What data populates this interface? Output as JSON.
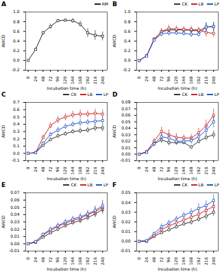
{
  "chart_data": [
    {
      "type": "line",
      "title": "A",
      "xlabel": "Incubation time (h)",
      "ylabel": "AWCD",
      "x": [
        0,
        24,
        48,
        72,
        96,
        120,
        144,
        168,
        192,
        216,
        240
      ],
      "xlim": [
        -8,
        255
      ],
      "xticks": [
        0,
        24,
        48,
        72,
        96,
        120,
        144,
        168,
        192,
        216,
        240
      ],
      "ylim": [
        -0.2,
        1.0
      ],
      "yticks": [
        -0.2,
        {
          "value": 0,
          "label": "0.0"
        },
        0.2,
        0.4,
        0.6,
        0.8,
        {
          "value": 1,
          "label": "1.0"
        }
      ],
      "grid": false,
      "legend": "upper right",
      "marker": "square",
      "series": [
        {
          "name": "RM",
          "color": "#222222",
          "values": [
            0.0,
            0.23,
            0.57,
            0.7,
            0.82,
            0.83,
            0.82,
            0.75,
            0.57,
            0.52,
            0.5
          ],
          "yerr": [
            0.01,
            0.03,
            0.04,
            0.05,
            0.03,
            0.03,
            0.05,
            0.06,
            0.09,
            0.1,
            0.09
          ]
        }
      ]
    },
    {
      "type": "line",
      "title": "B",
      "xlabel": "Incubation time (h)",
      "ylabel": "AWCD",
      "x": [
        0,
        24,
        48,
        72,
        96,
        120,
        144,
        168,
        192,
        216,
        240
      ],
      "xlim": [
        -8,
        255
      ],
      "xticks": [
        0,
        24,
        48,
        72,
        96,
        120,
        144,
        168,
        192,
        216,
        240
      ],
      "ylim": [
        -0.2,
        1.0
      ],
      "yticks": [
        -0.2,
        {
          "value": 0,
          "label": "0.0"
        },
        0.2,
        0.4,
        0.6,
        0.8,
        {
          "value": 1,
          "label": "1.0"
        }
      ],
      "grid": false,
      "legend": "upper right",
      "marker": "square",
      "series": [
        {
          "name": "CK",
          "color": "#333333",
          "values": [
            0.0,
            0.1,
            0.43,
            0.59,
            0.63,
            0.63,
            0.63,
            0.62,
            0.61,
            0.69,
            0.7
          ],
          "yerr": [
            0.005,
            0.02,
            0.04,
            0.06,
            0.06,
            0.05,
            0.05,
            0.06,
            0.05,
            0.09,
            0.09
          ]
        },
        {
          "name": "LB",
          "color": "#cc2222",
          "values": [
            0.0,
            0.1,
            0.44,
            0.6,
            0.66,
            0.65,
            0.64,
            0.64,
            0.63,
            0.58,
            0.56
          ],
          "yerr": [
            0.005,
            0.02,
            0.04,
            0.06,
            0.07,
            0.06,
            0.06,
            0.07,
            0.06,
            0.09,
            0.08
          ]
        },
        {
          "name": "LP",
          "color": "#2255cc",
          "values": [
            0.0,
            0.09,
            0.42,
            0.55,
            0.57,
            0.57,
            0.56,
            0.54,
            0.54,
            0.69,
            0.7
          ],
          "yerr": [
            0.005,
            0.02,
            0.04,
            0.06,
            0.06,
            0.05,
            0.05,
            0.06,
            0.05,
            0.09,
            0.09
          ]
        }
      ]
    },
    {
      "type": "line",
      "title": "C",
      "xlabel": "Incubation time (h)",
      "ylabel": "AWCD",
      "x": [
        0,
        24,
        48,
        72,
        96,
        120,
        144,
        168,
        192,
        216,
        240
      ],
      "xlim": [
        -8,
        255
      ],
      "xticks": [
        0,
        24,
        48,
        72,
        96,
        120,
        144,
        168,
        192,
        216,
        240
      ],
      "ylim": [
        -0.1,
        0.7
      ],
      "yticks": [
        -0.1,
        {
          "value": 0,
          "label": "0.0"
        },
        0.1,
        0.2,
        0.3,
        0.4,
        0.5,
        0.6,
        0.7
      ],
      "grid": false,
      "legend": "upper right",
      "marker": "square",
      "series": [
        {
          "name": "CK",
          "color": "#333333",
          "values": [
            0.0,
            0.01,
            0.11,
            0.19,
            0.24,
            0.27,
            0.3,
            0.31,
            0.32,
            0.35,
            0.35
          ],
          "yerr": [
            0.003,
            0.008,
            0.015,
            0.025,
            0.03,
            0.03,
            0.03,
            0.04,
            0.04,
            0.05,
            0.05
          ]
        },
        {
          "name": "LB",
          "color": "#cc2222",
          "values": [
            0.0,
            0.01,
            0.22,
            0.38,
            0.46,
            0.5,
            0.53,
            0.54,
            0.54,
            0.55,
            0.54
          ],
          "yerr": [
            0.003,
            0.008,
            0.03,
            0.04,
            0.05,
            0.05,
            0.05,
            0.06,
            0.05,
            0.06,
            0.06
          ]
        },
        {
          "name": "LP",
          "color": "#2255cc",
          "values": [
            0.0,
            0.01,
            0.14,
            0.26,
            0.32,
            0.37,
            0.4,
            0.42,
            0.43,
            0.44,
            0.45
          ],
          "yerr": [
            0.003,
            0.008,
            0.02,
            0.03,
            0.04,
            0.04,
            0.04,
            0.05,
            0.04,
            0.05,
            0.05
          ]
        }
      ]
    },
    {
      "type": "line",
      "title": "D",
      "xlabel": "Incubation time (h)",
      "ylabel": "AWCD",
      "x": [
        0,
        24,
        48,
        72,
        96,
        120,
        144,
        168,
        192,
        216,
        240
      ],
      "xlim": [
        -8,
        255
      ],
      "xticks": [
        0,
        24,
        48,
        72,
        96,
        120,
        144,
        168,
        192,
        216,
        240
      ],
      "ylim": [
        -0.01,
        0.08
      ],
      "yticks": [
        -0.01,
        {
          "value": 0,
          "label": "0.00"
        },
        0.01,
        0.02,
        0.03,
        0.04,
        0.05,
        0.06,
        0.07,
        0.08
      ],
      "grid": false,
      "legend": "upper right",
      "marker": "square",
      "series": [
        {
          "name": "CK",
          "color": "#333333",
          "values": [
            0.0,
            0.003,
            0.016,
            0.022,
            0.018,
            0.018,
            0.018,
            0.011,
            0.02,
            0.026,
            0.03
          ],
          "yerr": [
            0.001,
            0.002,
            0.004,
            0.005,
            0.005,
            0.004,
            0.003,
            0.003,
            0.004,
            0.005,
            0.006
          ]
        },
        {
          "name": "LB",
          "color": "#cc2222",
          "values": [
            0.0,
            0.004,
            0.02,
            0.035,
            0.03,
            0.026,
            0.025,
            0.025,
            0.033,
            0.044,
            0.06
          ],
          "yerr": [
            0.001,
            0.002,
            0.005,
            0.007,
            0.008,
            0.006,
            0.005,
            0.006,
            0.007,
            0.009,
            0.01
          ]
        },
        {
          "name": "LP",
          "color": "#2255cc",
          "values": [
            0.0,
            0.003,
            0.016,
            0.027,
            0.025,
            0.02,
            0.02,
            0.021,
            0.027,
            0.037,
            0.05
          ],
          "yerr": [
            0.001,
            0.002,
            0.004,
            0.006,
            0.006,
            0.005,
            0.004,
            0.005,
            0.005,
            0.007,
            0.009
          ]
        }
      ]
    },
    {
      "type": "line",
      "title": "E",
      "xlabel": "Incubation time (h)",
      "ylabel": "AWCD",
      "x": [
        0,
        24,
        48,
        72,
        96,
        120,
        144,
        168,
        192,
        216,
        240
      ],
      "xlim": [
        -8,
        255
      ],
      "xticks": [
        0,
        24,
        48,
        72,
        96,
        120,
        144,
        168,
        192,
        216,
        240
      ],
      "ylim": [
        -0.01,
        0.07
      ],
      "yticks": [
        -0.01,
        {
          "value": 0,
          "label": "0.00"
        },
        0.01,
        0.02,
        0.03,
        0.04,
        0.05,
        0.06,
        0.07
      ],
      "grid": false,
      "legend": "upper right",
      "marker": "square",
      "series": [
        {
          "name": "CK",
          "color": "#333333",
          "values": [
            0.0,
            0.002,
            0.009,
            0.015,
            0.02,
            0.025,
            0.029,
            0.032,
            0.036,
            0.041,
            0.047
          ],
          "yerr": [
            0.001,
            0.001,
            0.002,
            0.002,
            0.003,
            0.003,
            0.003,
            0.004,
            0.004,
            0.005,
            0.006
          ]
        },
        {
          "name": "LB",
          "color": "#cc2222",
          "values": [
            0.0,
            0.003,
            0.012,
            0.018,
            0.024,
            0.028,
            0.032,
            0.035,
            0.04,
            0.044,
            0.05
          ],
          "yerr": [
            0.001,
            0.001,
            0.002,
            0.003,
            0.003,
            0.004,
            0.004,
            0.005,
            0.005,
            0.006,
            0.007
          ]
        },
        {
          "name": "LP",
          "color": "#2255cc",
          "values": [
            0.0,
            0.003,
            0.013,
            0.02,
            0.025,
            0.03,
            0.034,
            0.037,
            0.041,
            0.046,
            0.052
          ],
          "yerr": [
            0.001,
            0.001,
            0.002,
            0.003,
            0.004,
            0.004,
            0.004,
            0.005,
            0.005,
            0.006,
            0.008
          ]
        }
      ]
    },
    {
      "type": "line",
      "title": "F",
      "xlabel": "Incubation time (h)",
      "ylabel": "AWCD",
      "x": [
        0,
        24,
        48,
        72,
        96,
        120,
        144,
        168,
        192,
        216,
        240
      ],
      "xlim": [
        -8,
        255
      ],
      "xticks": [
        0,
        24,
        48,
        72,
        96,
        120,
        144,
        168,
        192,
        216,
        240
      ],
      "ylim": [
        -0.01,
        0.05
      ],
      "yticks": [
        -0.01,
        {
          "value": 0,
          "label": "0.00"
        },
        0.01,
        0.02,
        0.03,
        0.04,
        0.05
      ],
      "grid": false,
      "legend": "upper right",
      "marker": "square",
      "series": [
        {
          "name": "CK",
          "color": "#333333",
          "values": [
            0.0,
            0.0,
            0.005,
            0.009,
            0.012,
            0.015,
            0.018,
            0.02,
            0.023,
            0.026,
            0.03
          ],
          "yerr": [
            0.001,
            0.001,
            0.001,
            0.002,
            0.002,
            0.002,
            0.002,
            0.003,
            0.003,
            0.004,
            0.004
          ]
        },
        {
          "name": "LB",
          "color": "#cc2222",
          "values": [
            0.0,
            0.0,
            0.006,
            0.012,
            0.016,
            0.019,
            0.022,
            0.025,
            0.028,
            0.032,
            0.036
          ],
          "yerr": [
            0.001,
            0.001,
            0.001,
            0.002,
            0.002,
            0.003,
            0.003,
            0.003,
            0.004,
            0.004,
            0.005
          ]
        },
        {
          "name": "LP",
          "color": "#2255cc",
          "values": [
            0.0,
            0.001,
            0.008,
            0.015,
            0.019,
            0.023,
            0.027,
            0.03,
            0.034,
            0.037,
            0.042
          ],
          "yerr": [
            0.001,
            0.001,
            0.002,
            0.003,
            0.003,
            0.003,
            0.003,
            0.004,
            0.005,
            0.005,
            0.006
          ]
        }
      ]
    }
  ]
}
